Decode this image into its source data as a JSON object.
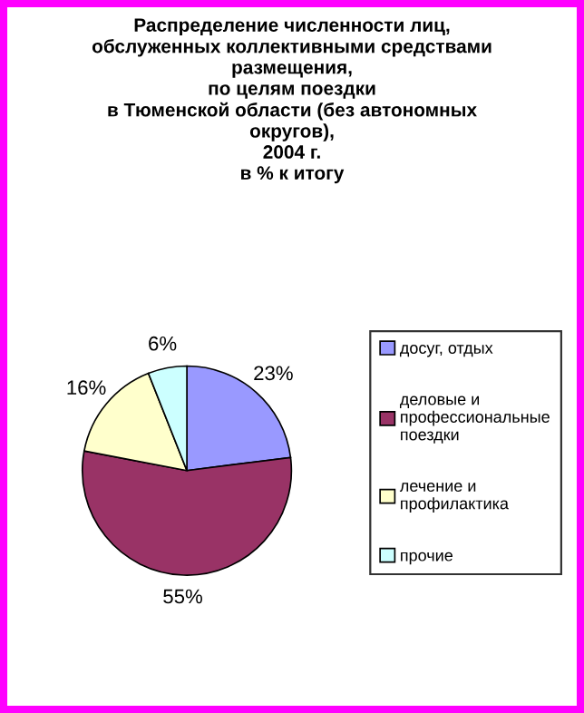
{
  "chart_data": {
    "type": "pie",
    "title": "Распределение численности лиц,\nобслуженных коллективными средствами\nразмещения,\nпо целям поездки\nв Тюменской области (без автономных\nокругов),\n2004 г.\nв % к итогу",
    "categories": [
      "досуг, отдых",
      "деловые и\nпрофессиональные\nпоездки",
      "лечение и\nпрофилактика",
      "прочие"
    ],
    "values": [
      23,
      55,
      16,
      6
    ],
    "colors": [
      "#9999ff",
      "#993366",
      "#ffffcc",
      "#ccffff"
    ],
    "value_labels": [
      "23%",
      "55%",
      "16%",
      "6%"
    ],
    "legend": "right"
  }
}
